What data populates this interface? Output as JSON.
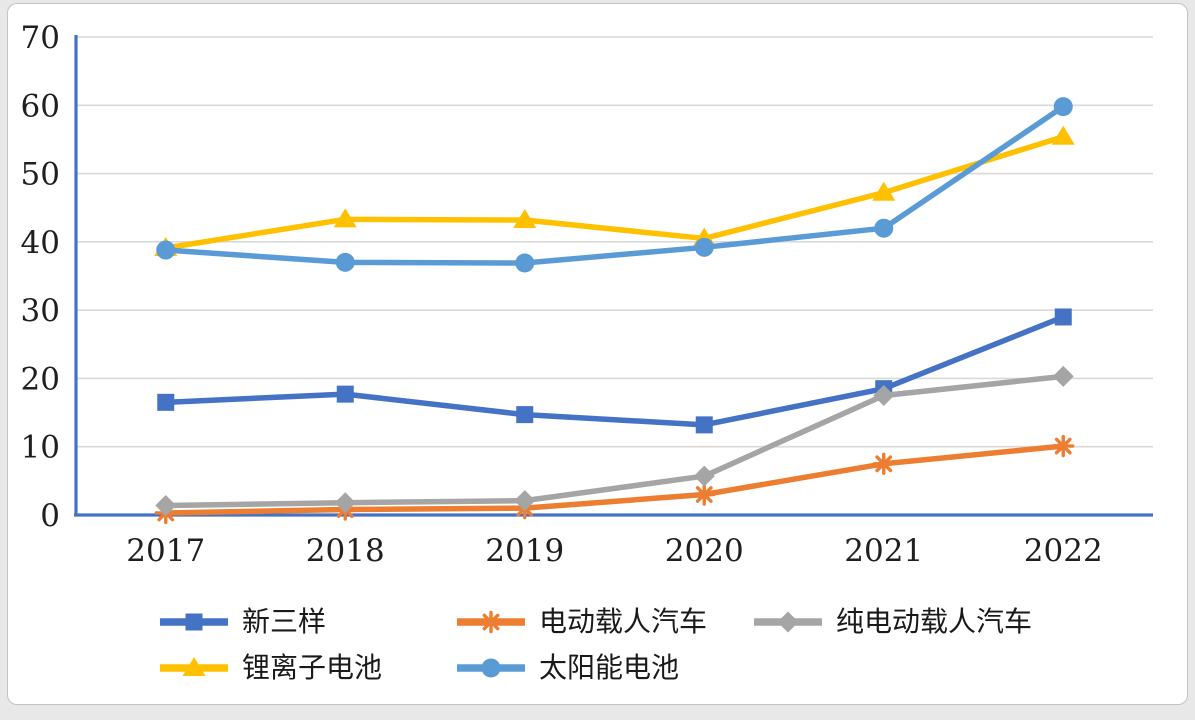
{
  "page": {
    "background_color": "#e8e8e8",
    "card_background": "#ffffff",
    "card_border_color": "#c3c3c3"
  },
  "chart_data": {
    "type": "line",
    "title": "",
    "xlabel": "",
    "ylabel": "",
    "categories": [
      "2017",
      "2018",
      "2019",
      "2020",
      "2021",
      "2022"
    ],
    "series": [
      {
        "name": "新三样",
        "color": "#4472C4",
        "marker": "square",
        "values": [
          16.5,
          17.7,
          14.7,
          13.2,
          18.5,
          29.0
        ]
      },
      {
        "name": "电动载人汽车",
        "color": "#ED7D31",
        "marker": "asterisk",
        "values": [
          0.3,
          0.8,
          1.0,
          3.0,
          7.5,
          10.1
        ]
      },
      {
        "name": "纯电动载人汽车",
        "color": "#A5A5A5",
        "marker": "diamond",
        "values": [
          1.4,
          1.8,
          2.1,
          5.7,
          17.5,
          20.3
        ]
      },
      {
        "name": "锂离子电池",
        "color": "#FFC000",
        "marker": "triangle",
        "values": [
          39.1,
          43.3,
          43.2,
          40.5,
          47.2,
          55.4
        ]
      },
      {
        "name": "太阳能电池",
        "color": "#5B9BD5",
        "marker": "circle",
        "values": [
          38.8,
          37.0,
          36.9,
          39.2,
          42.0,
          59.8
        ]
      }
    ],
    "ylim": [
      0,
      70
    ],
    "ytick_step": 10,
    "yticks": [
      0,
      10,
      20,
      30,
      40,
      50,
      60,
      70
    ],
    "grid": true,
    "gridline_color": "#D9D9D9",
    "axis_color": "#4472C4",
    "tick_label_color": "#1f1f1f",
    "legend_position": "bottom",
    "legend_rows": [
      [
        0,
        1,
        2
      ],
      [
        3,
        4
      ]
    ]
  }
}
